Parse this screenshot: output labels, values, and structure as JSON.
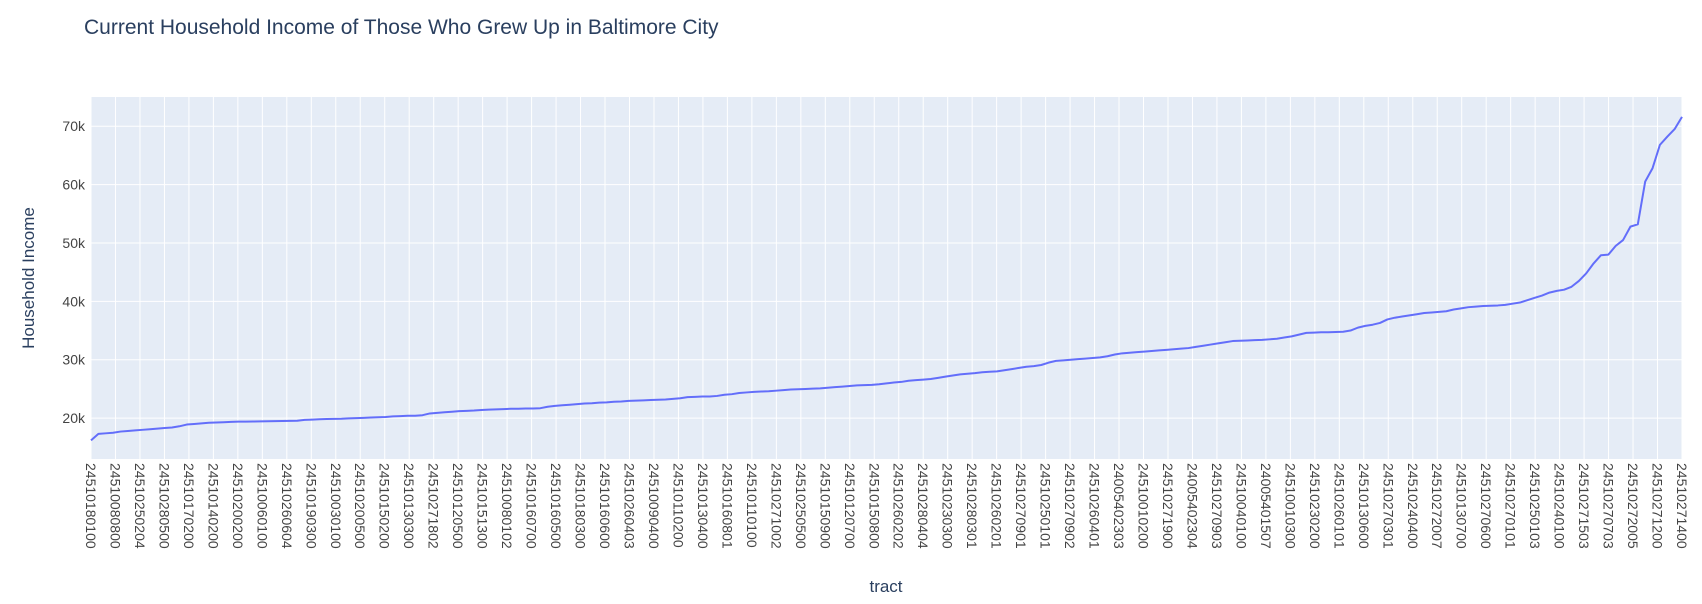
{
  "chart_data": {
    "type": "line",
    "title": "Current Household Income of Those Who Grew Up in Baltimore City",
    "xlabel": "tract",
    "ylabel": "Household Income",
    "ylim": [
      13000,
      75000
    ],
    "grid": true,
    "legend": "none",
    "colors": {
      "line": "#636efa",
      "plot_bg": "#e5ecf6",
      "grid": "#ffffff",
      "text": "#2a3f5f",
      "tick_text": "#444444"
    },
    "yticks": [
      {
        "value": 20000,
        "label": "20k"
      },
      {
        "value": 30000,
        "label": "30k"
      },
      {
        "value": 40000,
        "label": "40k"
      },
      {
        "value": 50000,
        "label": "50k"
      },
      {
        "value": 60000,
        "label": "60k"
      },
      {
        "value": 70000,
        "label": "70k"
      }
    ],
    "xtick_labels": [
      "24510180100",
      "24510080800",
      "24510250204",
      "24510280500",
      "24510170200",
      "24510140200",
      "24510200200",
      "24510060100",
      "24510260604",
      "24510190300",
      "24510030100",
      "24510200500",
      "24510150200",
      "24510130300",
      "24510271802",
      "24510120500",
      "24510151300",
      "24510080102",
      "24510160700",
      "24510160500",
      "24510180300",
      "24510160600",
      "24510260403",
      "24510090400",
      "24510110200",
      "24510130400",
      "24510160801",
      "24510110100",
      "24510271002",
      "24510250500",
      "24510150900",
      "24510120700",
      "24510150800",
      "24510260202",
      "24510280404",
      "24510230300",
      "24510280301",
      "24510260201",
      "24510270901",
      "24510250101",
      "24510270902",
      "24510260401",
      "24005402303",
      "24510010200",
      "24510271900",
      "24005402304",
      "24510270903",
      "24510040100",
      "24005401507",
      "24510010300",
      "24510230200",
      "24510260101",
      "24510130600",
      "24510270301",
      "24510240400",
      "24510272007",
      "24510130700",
      "24510270600",
      "24510270101",
      "24510250103",
      "24510240100",
      "24510271503",
      "24510270703",
      "24510272005",
      "24510271200",
      "24510271400"
    ],
    "series": [
      {
        "values": [
          16200,
          17300,
          17400,
          17500,
          17700,
          17800,
          17900,
          18000,
          18100,
          18200,
          18300,
          18400,
          18600,
          18900,
          19000,
          19100,
          19200,
          19250,
          19300,
          19350,
          19400,
          19400,
          19420,
          19450,
          19460,
          19480,
          19500,
          19520,
          19550,
          19700,
          19750,
          19800,
          19850,
          19880,
          19900,
          19950,
          20000,
          20050,
          20100,
          20150,
          20200,
          20300,
          20350,
          20400,
          20400,
          20500,
          20800,
          20900,
          21000,
          21100,
          21200,
          21250,
          21300,
          21400,
          21450,
          21500,
          21550,
          21600,
          21600,
          21650,
          21650,
          21700,
          21950,
          22100,
          22200,
          22300,
          22400,
          22500,
          22550,
          22650,
          22700,
          22800,
          22850,
          22950,
          23000,
          23050,
          23100,
          23150,
          23200,
          23300,
          23400,
          23600,
          23650,
          23700,
          23700,
          23800,
          24000,
          24100,
          24300,
          24400,
          24500,
          24550,
          24600,
          24700,
          24800,
          24900,
          24950,
          25000,
          25050,
          25100,
          25200,
          25300,
          25400,
          25500,
          25600,
          25650,
          25700,
          25800,
          25950,
          26100,
          26200,
          26400,
          26500,
          26600,
          26700,
          26900,
          27100,
          27300,
          27500,
          27600,
          27700,
          27850,
          27950,
          28000,
          28200,
          28400,
          28600,
          28800,
          28900,
          29100,
          29500,
          29800,
          29900,
          30000,
          30100,
          30200,
          30300,
          30400,
          30600,
          30900,
          31100,
          31200,
          31300,
          31400,
          31500,
          31600,
          31700,
          31800,
          31900,
          32000,
          32200,
          32400,
          32600,
          32800,
          33000,
          33200,
          33250,
          33300,
          33350,
          33400,
          33500,
          33600,
          33800,
          34000,
          34300,
          34600,
          34650,
          34700,
          34700,
          34750,
          34800,
          35000,
          35500,
          35800,
          36000,
          36300,
          36900,
          37200,
          37400,
          37600,
          37800,
          38000,
          38100,
          38200,
          38300,
          38600,
          38800,
          39000,
          39100,
          39200,
          39250,
          39300,
          39400,
          39600,
          39800,
          40200,
          40600,
          41000,
          41500,
          41800,
          42000,
          42500,
          43500,
          44800,
          46500,
          47900,
          48000,
          49500,
          50500,
          52800,
          53200,
          60500,
          62800,
          66800,
          68200,
          69500,
          71600
        ]
      }
    ]
  }
}
